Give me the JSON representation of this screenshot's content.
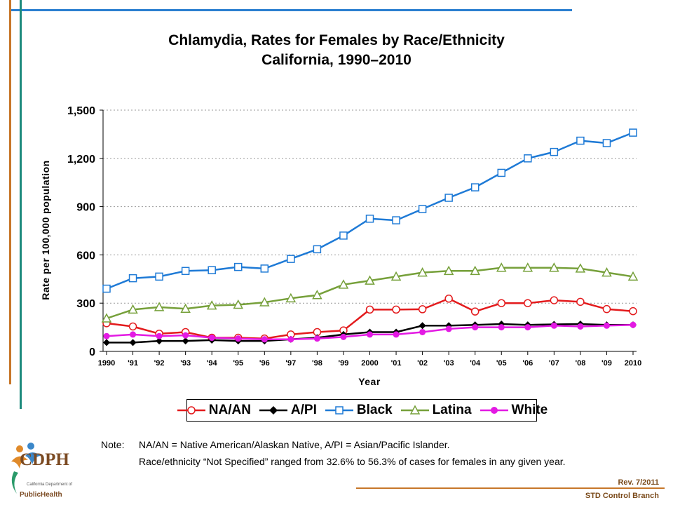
{
  "chart_data": {
    "type": "line",
    "title": [
      "Chlamydia, Rates for Females by Race/Ethnicity",
      "California, 1990–2010"
    ],
    "xlabel": "Year",
    "ylabel": "Rate per 100,000 population",
    "ylim": [
      0,
      1500
    ],
    "yticks": [
      "0",
      "300",
      "600",
      "900",
      "1,200",
      "1,500"
    ],
    "categories": [
      "1990",
      "'91",
      "'92",
      "'93",
      "'94",
      "'95",
      "'96",
      "'97",
      "'98",
      "'99",
      "2000",
      "'01",
      "'02",
      "'03",
      "'04",
      "'05",
      "'06",
      "'07",
      "'08",
      "'09",
      "2010"
    ],
    "grid": "horizontal dotted",
    "legend_position": "bottom",
    "series": [
      {
        "name": "NA/AN",
        "color": "#e31a1c",
        "marker": "circle",
        "values": [
          175,
          155,
          110,
          120,
          85,
          85,
          80,
          105,
          120,
          130,
          260,
          260,
          262,
          328,
          248,
          300,
          300,
          318,
          308,
          263,
          250
        ]
      },
      {
        "name": "A/PI",
        "color": "#000000",
        "marker": "diamond",
        "values": [
          55,
          55,
          65,
          65,
          70,
          65,
          65,
          75,
          85,
          105,
          120,
          120,
          160,
          160,
          165,
          170,
          165,
          168,
          170,
          165,
          165
        ]
      },
      {
        "name": "Black",
        "color": "#1e7ad6",
        "marker": "square",
        "values": [
          390,
          455,
          465,
          500,
          505,
          525,
          515,
          575,
          635,
          720,
          825,
          815,
          885,
          955,
          1020,
          1110,
          1200,
          1240,
          1310,
          1295,
          1360
        ]
      },
      {
        "name": "Latina",
        "color": "#76a03a",
        "marker": "triangle",
        "values": [
          205,
          260,
          275,
          265,
          285,
          290,
          305,
          330,
          350,
          415,
          440,
          465,
          490,
          500,
          500,
          520,
          520,
          520,
          515,
          490,
          465
        ]
      },
      {
        "name": "White",
        "color": "#e31ae3",
        "marker": "filled-circle",
        "values": [
          95,
          105,
          95,
          100,
          85,
          80,
          75,
          75,
          80,
          90,
          105,
          105,
          120,
          140,
          150,
          150,
          150,
          160,
          155,
          160,
          165
        ]
      }
    ]
  },
  "note": {
    "head": "Note:",
    "line1": "NA/AN = Native American/Alaskan Native, A/PI = Asian/Pacific Islander.",
    "line2": "Race/ethnicity “Not Specified” ranged from 32.6% to 56.3% of cases for females in any given year."
  },
  "footer": {
    "revision": "Rev. 7/2011",
    "branch": "STD Control Branch"
  },
  "logo": {
    "main": "CDPH",
    "small": "California Department of",
    "health": "PublicHealth"
  }
}
